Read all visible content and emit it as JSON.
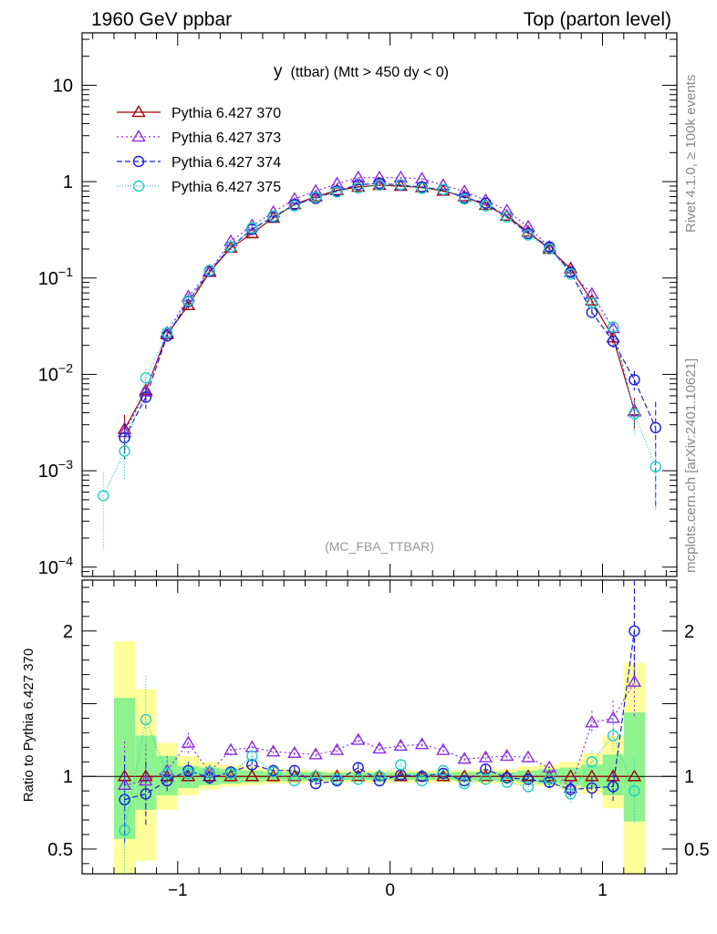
{
  "header": {
    "left": "1960 GeV ppbar",
    "right": "Top (parton level)"
  },
  "side_labels": {
    "rivet": "Rivet 4.1.0, ≥ 100k events",
    "source": "mcplots.cern.ch [arXiv:2401.10621]"
  },
  "chart_data": {
    "type": "line",
    "title": "y",
    "title_suffix": "(ttbar) (Mtt > 450 dy < 0)",
    "watermark": "(MC_FBA_TTBAR)",
    "xlim": [
      -1.45,
      1.35
    ],
    "x_ticks": [
      "−1",
      "0",
      "1"
    ],
    "x_tick_values": [
      -1,
      0,
      1
    ],
    "main": {
      "yscale": "log",
      "ylim": [
        8e-05,
        35
      ],
      "y_ticks": [
        {
          "value": 10,
          "base": "10",
          "exp": ""
        },
        {
          "value": 1,
          "base": "1",
          "exp": ""
        },
        {
          "value": 0.1,
          "base": "10",
          "exp": "−1"
        },
        {
          "value": 0.01,
          "base": "10",
          "exp": "−2"
        },
        {
          "value": 0.001,
          "base": "10",
          "exp": "−3"
        },
        {
          "value": 0.0001,
          "base": "10",
          "exp": "−4"
        }
      ]
    },
    "ratio": {
      "ylabel": "Ratio to Pythia 6.427 370",
      "ylim": [
        0.33,
        2.35
      ],
      "y_ticks": [
        {
          "value": 2,
          "label": "2"
        },
        {
          "value": 1,
          "label": "1"
        },
        {
          "value": 0.5,
          "label": "0.5"
        }
      ],
      "band_bins": [
        {
          "x0": -1.3,
          "x1": -1.2,
          "y1": [
            0.57,
            1.54
          ],
          "y2": [
            0.2,
            1.93
          ]
        },
        {
          "x0": -1.2,
          "x1": -1.1,
          "y1": [
            0.77,
            1.28
          ],
          "y2": [
            0.42,
            1.6
          ]
        },
        {
          "x0": -1.1,
          "x1": -1.0,
          "y1": [
            0.87,
            1.14
          ],
          "y2": [
            0.77,
            1.23
          ]
        },
        {
          "x0": -1.0,
          "x1": -0.9,
          "y1": [
            0.92,
            1.07
          ],
          "y2": [
            0.87,
            1.14
          ]
        },
        {
          "x0": -0.9,
          "x1": -0.8,
          "y1": [
            0.94,
            1.06
          ],
          "y2": [
            0.91,
            1.1
          ]
        },
        {
          "x0": -0.8,
          "x1": -0.7,
          "y1": [
            0.95,
            1.05
          ],
          "y2": [
            0.93,
            1.08
          ]
        },
        {
          "x0": -0.7,
          "x1": -0.6,
          "y1": [
            0.96,
            1.04
          ],
          "y2": [
            0.94,
            1.07
          ]
        },
        {
          "x0": -0.6,
          "x1": -0.5,
          "y1": [
            0.97,
            1.03
          ],
          "y2": [
            0.95,
            1.05
          ]
        },
        {
          "x0": -0.5,
          "x1": -0.4,
          "y1": [
            0.97,
            1.03
          ],
          "y2": [
            0.95,
            1.05
          ]
        },
        {
          "x0": -0.4,
          "x1": -0.3,
          "y1": [
            0.97,
            1.03
          ],
          "y2": [
            0.96,
            1.04
          ]
        },
        {
          "x0": -0.3,
          "x1": -0.2,
          "y1": [
            0.975,
            1.025
          ],
          "y2": [
            0.96,
            1.04
          ]
        },
        {
          "x0": -0.2,
          "x1": -0.1,
          "y1": [
            0.975,
            1.025
          ],
          "y2": [
            0.96,
            1.04
          ]
        },
        {
          "x0": -0.1,
          "x1": 0.0,
          "y1": [
            0.975,
            1.025
          ],
          "y2": [
            0.96,
            1.04
          ]
        },
        {
          "x0": 0.0,
          "x1": 0.1,
          "y1": [
            0.975,
            1.025
          ],
          "y2": [
            0.96,
            1.04
          ]
        },
        {
          "x0": 0.1,
          "x1": 0.2,
          "y1": [
            0.975,
            1.025
          ],
          "y2": [
            0.96,
            1.04
          ]
        },
        {
          "x0": 0.2,
          "x1": 0.3,
          "y1": [
            0.975,
            1.025
          ],
          "y2": [
            0.96,
            1.04
          ]
        },
        {
          "x0": 0.3,
          "x1": 0.4,
          "y1": [
            0.97,
            1.03
          ],
          "y2": [
            0.96,
            1.04
          ]
        },
        {
          "x0": 0.4,
          "x1": 0.5,
          "y1": [
            0.97,
            1.03
          ],
          "y2": [
            0.95,
            1.05
          ]
        },
        {
          "x0": 0.5,
          "x1": 0.6,
          "y1": [
            0.97,
            1.03
          ],
          "y2": [
            0.95,
            1.05
          ]
        },
        {
          "x0": 0.6,
          "x1": 0.7,
          "y1": [
            0.96,
            1.04
          ],
          "y2": [
            0.94,
            1.07
          ]
        },
        {
          "x0": 0.7,
          "x1": 0.8,
          "y1": [
            0.95,
            1.05
          ],
          "y2": [
            0.93,
            1.08
          ]
        },
        {
          "x0": 0.8,
          "x1": 0.9,
          "y1": [
            0.94,
            1.06
          ],
          "y2": [
            0.91,
            1.1
          ]
        },
        {
          "x0": 0.9,
          "x1": 1.0,
          "y1": [
            0.92,
            1.08
          ],
          "y2": [
            0.88,
            1.16
          ]
        },
        {
          "x0": 1.0,
          "x1": 1.1,
          "y1": [
            0.87,
            1.15
          ],
          "y2": [
            0.78,
            1.28
          ]
        },
        {
          "x0": 1.1,
          "x1": 1.2,
          "y1": [
            0.69,
            1.44
          ],
          "y2": [
            0.1,
            1.78
          ]
        }
      ],
      "band_colors": {
        "inner": "#8ef28e",
        "outer": "#ffff99"
      }
    },
    "series": [
      {
        "name": "Pythia 6.427 370",
        "color": "#a40000",
        "marker": "triangle",
        "dash": "",
        "x": [
          -1.25,
          -1.15,
          -1.05,
          -0.95,
          -0.85,
          -0.75,
          -0.65,
          -0.55,
          -0.45,
          -0.35,
          -0.25,
          -0.15,
          -0.05,
          0.05,
          0.15,
          0.25,
          0.35,
          0.45,
          0.55,
          0.65,
          0.75,
          0.85,
          0.95,
          1.05,
          1.15
        ],
        "y": [
          0.0027,
          0.0068,
          0.026,
          0.052,
          0.115,
          0.205,
          0.29,
          0.42,
          0.58,
          0.7,
          0.81,
          0.88,
          0.92,
          0.9,
          0.87,
          0.8,
          0.7,
          0.57,
          0.44,
          0.3,
          0.2,
          0.125,
          0.058,
          0.024,
          0.0042
        ],
        "yerr": [
          0.0011,
          0.0015,
          0.003,
          0.004,
          0.006,
          0.01,
          0.012,
          0.015,
          0.018,
          0.02,
          0.02,
          0.02,
          0.02,
          0.02,
          0.02,
          0.02,
          0.02,
          0.018,
          0.015,
          0.012,
          0.01,
          0.006,
          0.004,
          0.003,
          0.0015
        ],
        "ratio": [
          1,
          1,
          1,
          1,
          1,
          1,
          1,
          1,
          1,
          1,
          1,
          1,
          1,
          1,
          1,
          1,
          1,
          1,
          1,
          1,
          1,
          1,
          1,
          1,
          1
        ],
        "ratio_err": [
          0,
          0,
          0,
          0,
          0,
          0,
          0,
          0,
          0,
          0,
          0,
          0,
          0,
          0,
          0,
          0,
          0,
          0,
          0,
          0,
          0,
          0,
          0,
          0,
          0
        ]
      },
      {
        "name": "Pythia 6.427 373",
        "color": "#8a2be2",
        "marker": "triangle",
        "dash": "2,3",
        "x": [
          -1.25,
          -1.15,
          -1.05,
          -0.95,
          -0.85,
          -0.75,
          -0.65,
          -0.55,
          -0.45,
          -0.35,
          -0.25,
          -0.15,
          -0.05,
          0.05,
          0.15,
          0.25,
          0.35,
          0.45,
          0.55,
          0.65,
          0.75,
          0.85,
          0.95,
          1.05,
          1.15
        ],
        "y": [
          0.0025,
          0.0066,
          0.027,
          0.064,
          0.118,
          0.24,
          0.35,
          0.48,
          0.66,
          0.8,
          0.95,
          1.1,
          1.1,
          1.1,
          1.07,
          0.92,
          0.79,
          0.64,
          0.5,
          0.34,
          0.21,
          0.115,
          0.068,
          0.03,
          0.0041
        ],
        "yerr": [
          0.0008,
          0.0015,
          0.003,
          0.005,
          0.006,
          0.01,
          0.012,
          0.015,
          0.018,
          0.02,
          0.02,
          0.02,
          0.02,
          0.02,
          0.02,
          0.02,
          0.02,
          0.018,
          0.015,
          0.012,
          0.01,
          0.006,
          0.005,
          0.003,
          0.0012
        ],
        "ratio": [
          0.94,
          0.97,
          1.04,
          1.23,
          1.03,
          1.18,
          1.2,
          1.17,
          1.16,
          1.15,
          1.18,
          1.25,
          1.19,
          1.21,
          1.22,
          1.18,
          1.12,
          1.13,
          1.14,
          1.13,
          1.06,
          0.92,
          1.37,
          1.4,
          1.65
        ],
        "ratio_err": [
          0.3,
          0.25,
          0.1,
          0.07,
          0.05,
          0.04,
          0.04,
          0.03,
          0.03,
          0.03,
          0.03,
          0.03,
          0.03,
          0.03,
          0.03,
          0.03,
          0.03,
          0.03,
          0.03,
          0.04,
          0.04,
          0.05,
          0.08,
          0.12,
          0.25
        ]
      },
      {
        "name": "Pythia 6.427 374",
        "color": "#1c1cd6",
        "marker": "circle",
        "dash": "6,3",
        "x": [
          -1.25,
          -1.15,
          -1.05,
          -0.95,
          -0.85,
          -0.75,
          -0.65,
          -0.55,
          -0.45,
          -0.35,
          -0.25,
          -0.15,
          -0.05,
          0.05,
          0.15,
          0.25,
          0.35,
          0.45,
          0.55,
          0.65,
          0.75,
          0.85,
          0.95,
          1.05,
          1.15,
          1.25
        ],
        "y": [
          0.0022,
          0.0058,
          0.025,
          0.057,
          0.118,
          0.21,
          0.32,
          0.43,
          0.58,
          0.67,
          0.8,
          0.93,
          0.96,
          0.92,
          0.88,
          0.82,
          0.68,
          0.6,
          0.43,
          0.29,
          0.21,
          0.115,
          0.044,
          0.022,
          0.0088,
          0.0028
        ],
        "yerr": [
          0.0009,
          0.0014,
          0.003,
          0.004,
          0.006,
          0.01,
          0.012,
          0.015,
          0.018,
          0.02,
          0.02,
          0.02,
          0.02,
          0.02,
          0.02,
          0.02,
          0.02,
          0.018,
          0.015,
          0.012,
          0.01,
          0.006,
          0.004,
          0.003,
          0.002,
          0.0024
        ],
        "ratio": [
          0.84,
          0.88,
          0.97,
          1.04,
          0.99,
          1.03,
          1.08,
          1.04,
          1.04,
          0.95,
          0.97,
          1.06,
          0.97,
          1.01,
          1.0,
          1.02,
          0.97,
          1.05,
          0.99,
          0.98,
          0.96,
          0.91,
          0.92,
          0.93,
          2.0
        ],
        "ratio_err": [
          0.3,
          0.22,
          0.08,
          0.06,
          0.05,
          0.04,
          0.04,
          0.03,
          0.03,
          0.03,
          0.03,
          0.03,
          0.03,
          0.03,
          0.03,
          0.03,
          0.03,
          0.03,
          0.03,
          0.04,
          0.04,
          0.05,
          0.08,
          0.1,
          0.35
        ]
      },
      {
        "name": "Pythia 6.427 375",
        "color": "#20d0c0",
        "marker": "circle",
        "dash": "1,2",
        "x": [
          -1.35,
          -1.25,
          -1.15,
          -1.05,
          -0.95,
          -0.85,
          -0.75,
          -0.65,
          -0.55,
          -0.45,
          -0.35,
          -0.25,
          -0.15,
          -0.05,
          0.05,
          0.15,
          0.25,
          0.35,
          0.45,
          0.55,
          0.65,
          0.75,
          0.85,
          0.95,
          1.05,
          1.15,
          1.25
        ],
        "y": [
          0.00055,
          0.0016,
          0.0092,
          0.027,
          0.058,
          0.12,
          0.21,
          0.33,
          0.44,
          0.56,
          0.69,
          0.78,
          0.86,
          0.92,
          0.93,
          0.85,
          0.83,
          0.66,
          0.56,
          0.43,
          0.28,
          0.2,
          0.11,
          0.055,
          0.031,
          0.0039,
          0.0011
        ],
        "yerr": [
          0.0004,
          0.0008,
          0.002,
          0.003,
          0.004,
          0.006,
          0.01,
          0.012,
          0.015,
          0.018,
          0.02,
          0.02,
          0.02,
          0.02,
          0.02,
          0.02,
          0.02,
          0.02,
          0.018,
          0.015,
          0.012,
          0.01,
          0.006,
          0.004,
          0.003,
          0.0015,
          0.0007
        ],
        "ratio": [
          0.63,
          1.39,
          1.02,
          1.02,
          1.03,
          1.02,
          1.14,
          1.03,
          0.97,
          1.0,
          0.98,
          0.98,
          1.0,
          1.08,
          0.97,
          1.04,
          0.95,
          0.98,
          0.96,
          0.93,
          0.98,
          0.88,
          1.1,
          1.28,
          0.9
        ],
        "ratio_x": [
          -1.25,
          -1.15,
          -1.05,
          -0.95,
          -0.85,
          -0.75,
          -0.65,
          -0.55,
          -0.45,
          -0.35,
          -0.25,
          -0.15,
          -0.05,
          0.05,
          0.15,
          0.25,
          0.35,
          0.45,
          0.55,
          0.65,
          0.75,
          0.85,
          0.95,
          1.05,
          1.15
        ],
        "ratio_err": [
          0.3,
          0.3,
          0.1,
          0.07,
          0.05,
          0.04,
          0.04,
          0.03,
          0.03,
          0.03,
          0.03,
          0.03,
          0.03,
          0.03,
          0.03,
          0.03,
          0.03,
          0.03,
          0.03,
          0.04,
          0.04,
          0.06,
          0.08,
          0.12,
          0.22
        ]
      }
    ]
  }
}
